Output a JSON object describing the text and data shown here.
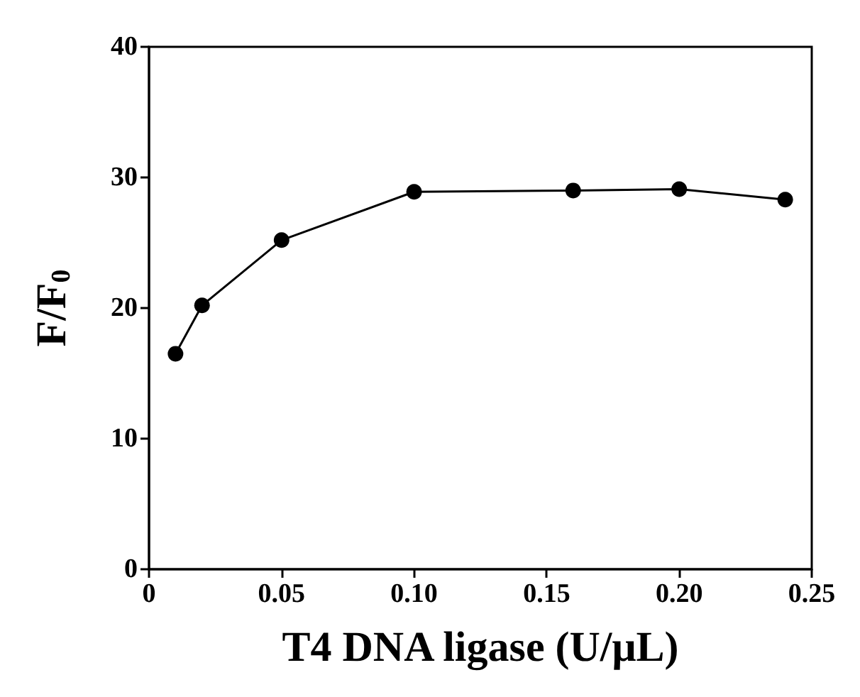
{
  "chart_data": {
    "type": "line",
    "xlabel": "T4 DNA ligase (U/μL)",
    "ylabel": "F/F$_{0}$",
    "x": [
      0.01,
      0.02,
      0.05,
      0.1,
      0.16,
      0.2,
      0.24
    ],
    "series": [
      {
        "color": "#000000",
        "values": [
          16.5,
          20.2,
          25.2,
          28.9,
          29.0,
          29.1,
          28.3
        ]
      }
    ],
    "xlim": [
      0,
      0.25
    ],
    "xticks": [
      0,
      {
        "value": 0.05,
        "label": "0.05"
      },
      {
        "value": 0.1,
        "label": "0.10"
      },
      {
        "value": 0.15,
        "label": "0.15"
      },
      {
        "value": 0.2,
        "label": "0.20"
      },
      {
        "value": 0.25,
        "label": "0.25"
      }
    ],
    "ylim": [
      0,
      40
    ],
    "yticks": [
      0,
      10,
      20,
      30,
      40
    ],
    "grid": false,
    "marker": "circle",
    "line_style": "solid"
  }
}
